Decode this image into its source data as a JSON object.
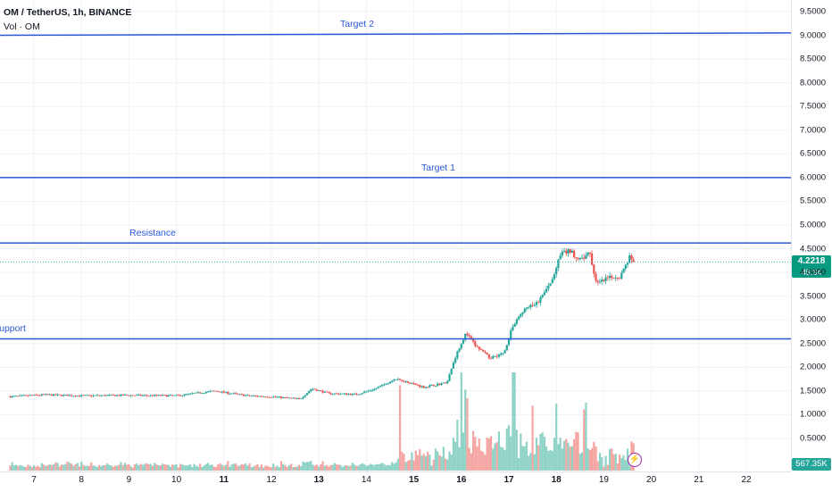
{
  "legend": {
    "title": "OM / TetherUS, 1h, BINANCE",
    "volume": "Vol · OM"
  },
  "price_axis": {
    "ticks": [
      "9.5000",
      "9.0000",
      "8.5000",
      "8.0000",
      "7.5000",
      "7.0000",
      "6.5000",
      "6.0000",
      "5.5000",
      "5.0000",
      "4.5000",
      "4.0000",
      "3.5000",
      "3.0000",
      "2.5000",
      "2.0000",
      "1.5000",
      "1.0000",
      "0.5000"
    ],
    "tick_values": [
      9.5,
      9.0,
      8.5,
      8.0,
      7.5,
      7.0,
      6.5,
      6.0,
      5.5,
      5.0,
      4.5,
      4.0,
      3.5,
      3.0,
      2.5,
      2.0,
      1.5,
      1.0,
      0.5
    ]
  },
  "time_axis": {
    "ticks": [
      "7",
      "8",
      "9",
      "10",
      "11",
      "12",
      "13",
      "14",
      "15",
      "16",
      "17",
      "18",
      "19",
      "20",
      "21",
      "22"
    ],
    "bold_ticks": [
      "11",
      "13",
      "15",
      "16",
      "17",
      "18"
    ]
  },
  "drawings": [
    {
      "label": "Target 2",
      "price_start": 9.0,
      "price_end": 9.05
    },
    {
      "label": "Target 1",
      "price_start": 6.0,
      "price_end": 6.0
    },
    {
      "label": "Resistance",
      "price_start": 4.62,
      "price_end": 4.62
    },
    {
      "label": "upport",
      "price_start": 2.6,
      "price_end": 2.6
    }
  ],
  "current_price": {
    "price": "4.2218",
    "countdown": "45:34",
    "value": 4.2218
  },
  "volume_badge": "567.35K",
  "colors": {
    "up": "#26a69a",
    "down": "#ef5350",
    "vol_up": "#8fd3c7",
    "vol_down": "#f5a5a2",
    "drawing": "#2a57d8",
    "grid": "#f0f3fa"
  },
  "icons": {
    "alert": "lightning-icon"
  },
  "chart_data": {
    "type": "candlestick",
    "symbol": "OM / TetherUS",
    "interval": "1h",
    "exchange": "BINANCE",
    "ylim": [
      0.0,
      9.8
    ],
    "x_domain_days": [
      6.5,
      22.4
    ],
    "price_keypoints": [
      {
        "day": 6.5,
        "price": 1.38
      },
      {
        "day": 7.2,
        "price": 1.42
      },
      {
        "day": 8.0,
        "price": 1.4
      },
      {
        "day": 9.0,
        "price": 1.41
      },
      {
        "day": 10.0,
        "price": 1.4
      },
      {
        "day": 10.8,
        "price": 1.5
      },
      {
        "day": 11.5,
        "price": 1.4
      },
      {
        "day": 12.0,
        "price": 1.38
      },
      {
        "day": 12.6,
        "price": 1.33
      },
      {
        "day": 12.85,
        "price": 1.55
      },
      {
        "day": 13.2,
        "price": 1.45
      },
      {
        "day": 13.8,
        "price": 1.43
      },
      {
        "day": 14.2,
        "price": 1.55
      },
      {
        "day": 14.6,
        "price": 1.75
      },
      {
        "day": 14.9,
        "price": 1.68
      },
      {
        "day": 15.2,
        "price": 1.58
      },
      {
        "day": 15.7,
        "price": 1.68
      },
      {
        "day": 15.9,
        "price": 2.3
      },
      {
        "day": 16.1,
        "price": 2.72
      },
      {
        "day": 16.3,
        "price": 2.45
      },
      {
        "day": 16.6,
        "price": 2.2
      },
      {
        "day": 16.9,
        "price": 2.3
      },
      {
        "day": 17.05,
        "price": 2.8
      },
      {
        "day": 17.3,
        "price": 3.2
      },
      {
        "day": 17.6,
        "price": 3.35
      },
      {
        "day": 17.9,
        "price": 3.8
      },
      {
        "day": 18.1,
        "price": 4.4
      },
      {
        "day": 18.3,
        "price": 4.45
      },
      {
        "day": 18.5,
        "price": 4.25
      },
      {
        "day": 18.7,
        "price": 4.4
      },
      {
        "day": 18.85,
        "price": 3.75
      },
      {
        "day": 19.1,
        "price": 3.88
      },
      {
        "day": 19.35,
        "price": 3.92
      },
      {
        "day": 19.55,
        "price": 4.35
      },
      {
        "day": 19.65,
        "price": 4.22
      }
    ],
    "current_price": 4.2218,
    "volume_peaks": [
      {
        "day": 14.7,
        "volume": 1.6
      },
      {
        "day": 16.0,
        "volume": 1.9
      },
      {
        "day": 16.1,
        "volume": 1.4
      },
      {
        "day": 17.1,
        "volume": 1.7
      },
      {
        "day": 17.5,
        "volume": 1.2
      },
      {
        "day": 18.0,
        "volume": 1.0
      },
      {
        "day": 18.6,
        "volume": 0.9
      },
      {
        "day": 19.6,
        "volume": 0.45
      }
    ],
    "current_volume": "567.35K",
    "horizontal_lines": [
      {
        "label": "Target 2",
        "price": 9.0
      },
      {
        "label": "Target 1",
        "price": 6.0
      },
      {
        "label": "Resistance",
        "price": 4.62
      },
      {
        "label": "upport",
        "price": 2.6
      }
    ]
  }
}
